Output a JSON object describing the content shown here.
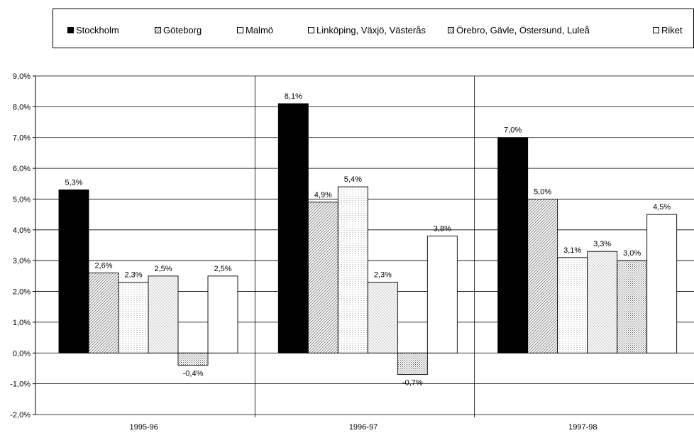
{
  "legend": [
    {
      "label": "Stockholm",
      "fill": "#000000"
    },
    {
      "label": "Göteborg",
      "fill": "url(#pat-diag)"
    },
    {
      "label": "Malmö",
      "fill": "url(#pat-horiz)"
    },
    {
      "label": "Linköping, Växjö, Västerås",
      "fill": "url(#pat-grid)"
    },
    {
      "label": "Örebro, Gävle, Östersund, Luleå",
      "fill": "url(#pat-dots)"
    },
    {
      "label": "Riket",
      "fill": "#ffffff"
    }
  ],
  "chart_data": {
    "type": "bar",
    "categories": [
      "1995-96",
      "1996-97",
      "1997-98"
    ],
    "series": [
      {
        "name": "Stockholm",
        "values": [
          5.3,
          8.1,
          7.0
        ],
        "labels": [
          "5,3%",
          "8,1%",
          "7,0%"
        ]
      },
      {
        "name": "Göteborg",
        "values": [
          2.6,
          4.9,
          5.0
        ],
        "labels": [
          "2,6%",
          "4,9%",
          "5,0%"
        ]
      },
      {
        "name": "Malmö",
        "values": [
          2.3,
          5.4,
          3.1
        ],
        "labels": [
          "2,3%",
          "5,4%",
          "3,1%"
        ]
      },
      {
        "name": "Linköping, Växjö, Västerås",
        "values": [
          2.5,
          2.3,
          3.3
        ],
        "labels": [
          "2,5%",
          "2,3%",
          "3,3%"
        ]
      },
      {
        "name": "Örebro, Gävle, Östersund, Luleå",
        "values": [
          -0.4,
          -0.7,
          3.0
        ],
        "labels": [
          "-0,4%",
          "-0,7%",
          "3,0%"
        ]
      },
      {
        "name": "Riket",
        "values": [
          2.5,
          3.8,
          4.5
        ],
        "labels": [
          "2,5%",
          "3,8%",
          "4,5%"
        ]
      }
    ],
    "ylim": [
      -2.0,
      9.0
    ],
    "yticks": [
      "-2,0%",
      "-1,0%",
      "0,0%",
      "1,0%",
      "2,0%",
      "3,0%",
      "4,0%",
      "5,0%",
      "6,0%",
      "7,0%",
      "8,0%",
      "9,0%"
    ],
    "grid": true,
    "legend_position": "top",
    "title": "",
    "xlabel": "",
    "ylabel": ""
  }
}
